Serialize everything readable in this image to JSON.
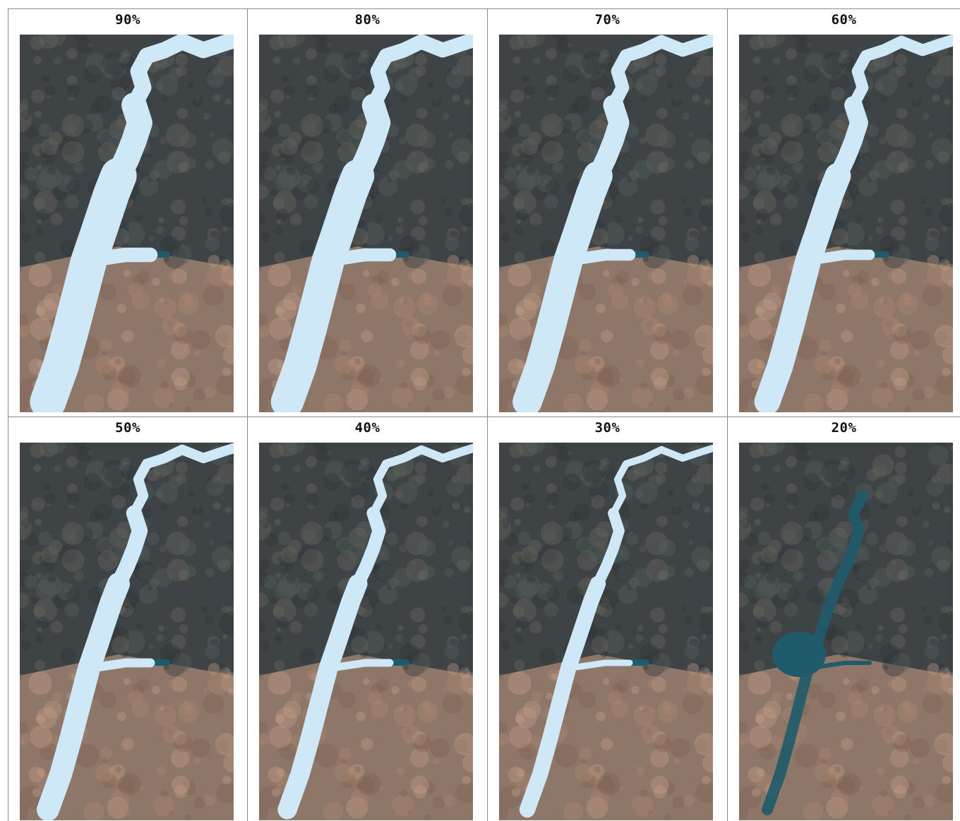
{
  "panels": [
    {
      "label": "90%",
      "water_fraction": 0.9
    },
    {
      "label": "80%",
      "water_fraction": 0.8
    },
    {
      "label": "70%",
      "water_fraction": 0.7
    },
    {
      "label": "60%",
      "water_fraction": 0.6
    },
    {
      "label": "50%",
      "water_fraction": 0.5
    },
    {
      "label": "40%",
      "water_fraction": 0.4
    },
    {
      "label": "30%",
      "water_fraction": 0.3
    },
    {
      "label": "20%",
      "water_fraction": 0.2
    }
  ],
  "colors": {
    "flood_overlay": "#cfe8f7",
    "actual_water": "#1f5b6a",
    "terrain_dark": "#3e4446",
    "terrain_light": "#9c7f6e",
    "grid_line": "#8a8a8a"
  }
}
